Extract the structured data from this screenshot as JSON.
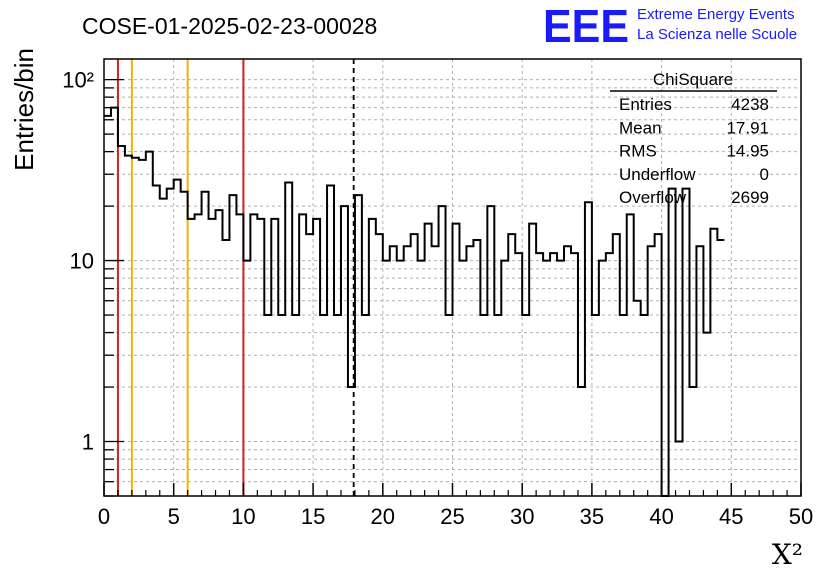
{
  "header": {
    "run_title": "COSE-01-2025-02-23-00028",
    "logo_text": "EEE",
    "logo_line1": "Extreme Energy Events",
    "logo_line2": "La Scienza nelle Scuole"
  },
  "stats_box": {
    "title": "ChiSquare",
    "rows": [
      {
        "label": "Entries",
        "value": "4238"
      },
      {
        "label": "Mean",
        "value": "17.91"
      },
      {
        "label": "RMS",
        "value": "14.95"
      },
      {
        "label": "Underflow",
        "value": "0"
      },
      {
        "label": "Overflow",
        "value": "2699"
      }
    ]
  },
  "colors": {
    "red_line": "#d42020",
    "yellow_line": "#f0b400",
    "logo_blue": "#1a1aff",
    "grid": "#b0b0b0"
  },
  "chart_data": {
    "type": "bar",
    "style": "step-histogram",
    "xlabel": "X²",
    "ylabel": "Entries/bin",
    "xlim": [
      0,
      50
    ],
    "ylim": [
      0.5,
      130
    ],
    "yscale": "log",
    "grid": true,
    "bin_width": 0.5,
    "xticks": [
      0,
      5,
      10,
      15,
      20,
      25,
      30,
      35,
      40,
      45,
      50
    ],
    "yticks": [
      {
        "value": 1,
        "label": "1"
      },
      {
        "value": 10,
        "label": "10"
      },
      {
        "value": 100,
        "label": "10²"
      }
    ],
    "values": [
      63,
      70,
      43,
      38,
      37,
      36,
      40,
      26,
      22,
      25,
      28,
      24,
      17,
      18,
      24,
      17,
      19,
      13,
      23,
      18,
      10,
      18,
      17,
      5,
      17,
      5,
      27,
      5,
      18,
      14,
      17,
      5,
      26,
      5,
      20,
      2,
      23,
      5,
      17,
      14,
      10,
      12,
      10,
      12,
      14,
      10,
      16,
      12,
      20,
      5,
      16,
      10,
      12,
      13,
      5,
      20,
      5,
      10,
      14,
      11,
      5,
      16,
      11,
      10,
      11,
      10,
      12,
      11,
      2,
      21,
      5,
      10,
      11,
      14,
      5,
      18,
      6,
      5,
      12,
      14,
      0,
      25,
      1,
      25,
      2,
      12,
      4,
      15,
      13
    ],
    "vertical_lines": [
      {
        "x": 1,
        "color": "red",
        "style": "solid"
      },
      {
        "x": 2,
        "color": "yellow",
        "style": "solid"
      },
      {
        "x": 6,
        "color": "yellow",
        "style": "solid"
      },
      {
        "x": 10,
        "color": "red",
        "style": "solid"
      },
      {
        "x": 17.91,
        "color": "black",
        "style": "dashed"
      }
    ]
  }
}
